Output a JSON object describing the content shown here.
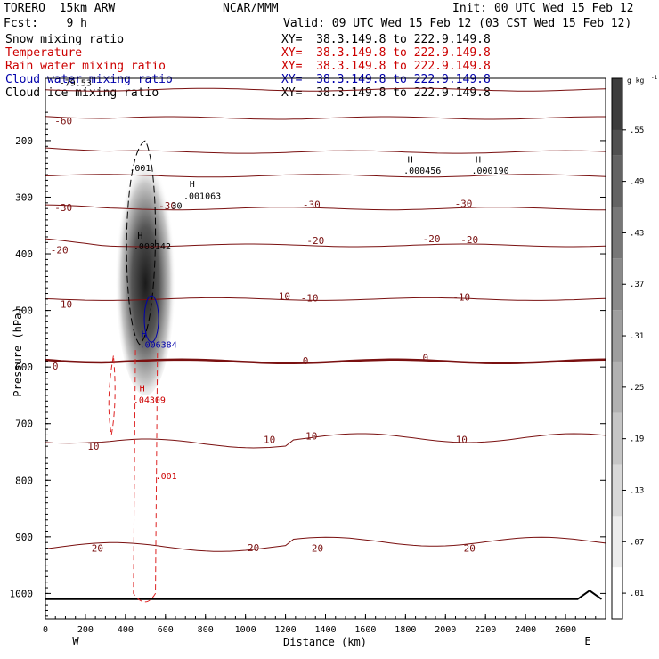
{
  "header": {
    "model": "TORERO  15km ARW",
    "org": "NCAR/MMM",
    "init": "Init: 00 UTC Wed 15 Feb 12",
    "fcst": "Fcst:    9 h",
    "valid": "Valid: 09 UTC Wed 15 Feb 12 (03 CST Wed 15 Feb 12)"
  },
  "fields": [
    {
      "name": "Snow mixing ratio",
      "xy": "XY=  38.3.149.8 to 222.9.149.8",
      "color": "#000000"
    },
    {
      "name": "Temperature",
      "xy": "XY=  38.3.149.8 to 222.9.149.8",
      "color": "#cc0000"
    },
    {
      "name": "Rain water mixing ratio",
      "xy": "XY=  38.3.149.8 to 222.9.149.8",
      "color": "#cc0000"
    },
    {
      "name": "Cloud water mixing ratio",
      "xy": "XY=  38.3.149.8 to 222.9.149.8",
      "color": "#0000aa"
    },
    {
      "name": "Cloud ice mixing ratio",
      "xy": "XY=  38.3.149.8 to 222.9.149.8",
      "color": "#000000"
    }
  ],
  "chart_data": {
    "type": "cross-section contour",
    "xlabel": "Distance (km)",
    "ylabel": "Pressure (hPa)",
    "x_ticks": [
      0,
      200,
      400,
      600,
      800,
      1000,
      1200,
      1400,
      1600,
      1800,
      2000,
      2200,
      2400,
      2600
    ],
    "y_ticks": [
      200,
      300,
      400,
      500,
      600,
      700,
      800,
      900,
      1000
    ],
    "xlim": [
      0,
      2800
    ],
    "ylim": [
      90,
      1045
    ],
    "x_end_labels": {
      "left": "W",
      "right": "E"
    },
    "colorbar": {
      "unit": "g kg",
      "unit_exp": "-1",
      "ticks": [
        ".01",
        ".07",
        ".13",
        ".19",
        ".25",
        ".31",
        ".37",
        ".43",
        ".49",
        ".55"
      ],
      "min": 0.0,
      "max": 0.58
    },
    "temperature_contours": [
      {
        "value": -70,
        "label": "",
        "p": 110
      },
      {
        "value": -60,
        "label": "-60",
        "p": 160
      },
      {
        "value": -50,
        "label": "",
        "p": 220
      },
      {
        "value": -40,
        "label": "",
        "p": 262
      },
      {
        "value": -30,
        "label": "-30",
        "p": 320
      },
      {
        "value": -20,
        "label": "-20",
        "p": 385
      },
      {
        "value": -10,
        "label": "-10",
        "p": 480
      },
      {
        "value": 0,
        "label": "0",
        "p": 590
      },
      {
        "value": 10,
        "label": "10",
        "p": 735
      },
      {
        "value": 20,
        "label": "20",
        "p": 918
      }
    ],
    "temperature_labels": [
      {
        "text": "-60",
        "x": 90,
        "p": 165
      },
      {
        "text": "-30",
        "x": 90,
        "p": 318
      },
      {
        "text": "-30",
        "x": 610,
        "p": 315
      },
      {
        "text": "-30",
        "x": 1330,
        "p": 313
      },
      {
        "text": "-30",
        "x": 2090,
        "p": 311
      },
      {
        "text": "-20",
        "x": 70,
        "p": 393
      },
      {
        "text": "-20",
        "x": 1350,
        "p": 376
      },
      {
        "text": "-20",
        "x": 1930,
        "p": 373
      },
      {
        "text": "-20",
        "x": 2120,
        "p": 375
      },
      {
        "text": "-10",
        "x": 90,
        "p": 489
      },
      {
        "text": "-10",
        "x": 1180,
        "p": 475
      },
      {
        "text": "-10",
        "x": 1320,
        "p": 478
      },
      {
        "text": "-10",
        "x": 2080,
        "p": 476
      },
      {
        "text": "0",
        "x": 50,
        "p": 598
      },
      {
        "text": "0",
        "x": 1300,
        "p": 589
      },
      {
        "text": "0",
        "x": 1900,
        "p": 583
      },
      {
        "text": "10",
        "x": 240,
        "p": 740
      },
      {
        "text": "10",
        "x": 1120,
        "p": 728
      },
      {
        "text": "10",
        "x": 1330,
        "p": 722
      },
      {
        "text": "10",
        "x": 2080,
        "p": 728
      },
      {
        "text": "20",
        "x": 260,
        "p": 920
      },
      {
        "text": "20",
        "x": 1040,
        "p": 919
      },
      {
        "text": "20",
        "x": 1360,
        "p": 920
      },
      {
        "text": "20",
        "x": 2120,
        "p": 920
      }
    ],
    "contour_labels": [
      {
        "text": "-79.53",
        "x": 70,
        "p": 97,
        "color": "#000000"
      },
      {
        "text": ".001",
        "x": 420,
        "p": 247,
        "color": "#000000"
      },
      {
        "text": "H",
        "x": 720,
        "p": 276,
        "color": "#000000"
      },
      {
        "text": ".001063",
        "x": 690,
        "p": 297,
        "color": "#000000"
      },
      {
        "text": "H",
        "x": 1810,
        "p": 232,
        "color": "#000000"
      },
      {
        "text": ".000456",
        "x": 1790,
        "p": 252,
        "color": "#000000"
      },
      {
        "text": "H",
        "x": 2150,
        "p": 232,
        "color": "#000000"
      },
      {
        "text": ".000190",
        "x": 2130,
        "p": 252,
        "color": "#000000"
      },
      {
        "text": "H",
        "x": 460,
        "p": 367,
        "color": "#000000"
      },
      {
        "text": ".008142",
        "x": 440,
        "p": 386,
        "color": "#000000"
      },
      {
        "text": "H",
        "x": 480,
        "p": 541,
        "color": "#0000aa"
      },
      {
        "text": ".006384",
        "x": 470,
        "p": 560,
        "color": "#0000aa"
      },
      {
        "text": "H",
        "x": 470,
        "p": 637,
        "color": "#cc0000"
      },
      {
        "text": ".04309",
        "x": 440,
        "p": 657,
        "color": "#cc0000"
      },
      {
        "text": ".001",
        "x": 550,
        "p": 792,
        "color": "#cc0000"
      },
      {
        "text": "30",
        "x": 630,
        "p": 314,
        "color": "#000000"
      }
    ],
    "snow_max": 0.008142,
    "rain_max": 0.04309,
    "cloud_water_max": 0.006384
  }
}
